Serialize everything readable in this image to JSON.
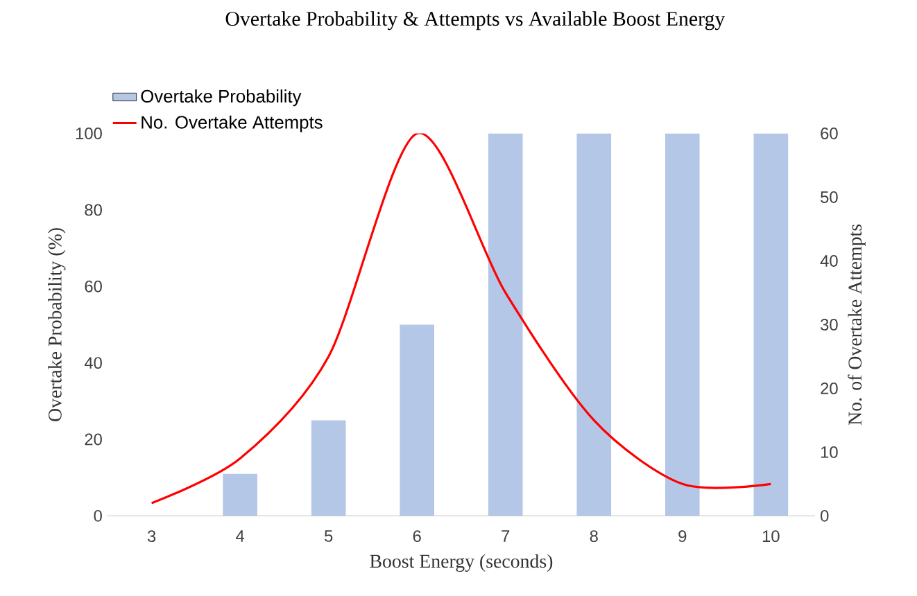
{
  "chart_data": {
    "type": "bar",
    "title": "Overtake Probability & Attempts vs Available Boost Energy",
    "xlabel": "Boost Energy (seconds)",
    "ylabel": "Overtake Probability (%)",
    "y2label": "No. of Overtake Attempts",
    "categories": [
      "3",
      "4",
      "5",
      "6",
      "7",
      "8",
      "9",
      "10"
    ],
    "series": [
      {
        "name": "Overtake Probability",
        "color": "#b4c7e7",
        "values": [
          0,
          11,
          25,
          50,
          100,
          100,
          100,
          100
        ]
      },
      {
        "name": "No. Overtake  Attempts",
        "type": "line",
        "axis": "y2",
        "color": "#ff0000",
        "line_style": "solid",
        "marker": "none",
        "values": [
          2,
          9,
          25,
          60,
          35,
          15,
          5,
          5
        ]
      }
    ],
    "ylim": [
      0,
      100
    ],
    "yticks": [
      0,
      20,
      40,
      60,
      80,
      100
    ],
    "y2lim": [
      0,
      60
    ],
    "y2ticks": [
      0,
      10,
      20,
      30,
      40,
      50,
      60
    ],
    "grid": false,
    "legend": "top left"
  }
}
